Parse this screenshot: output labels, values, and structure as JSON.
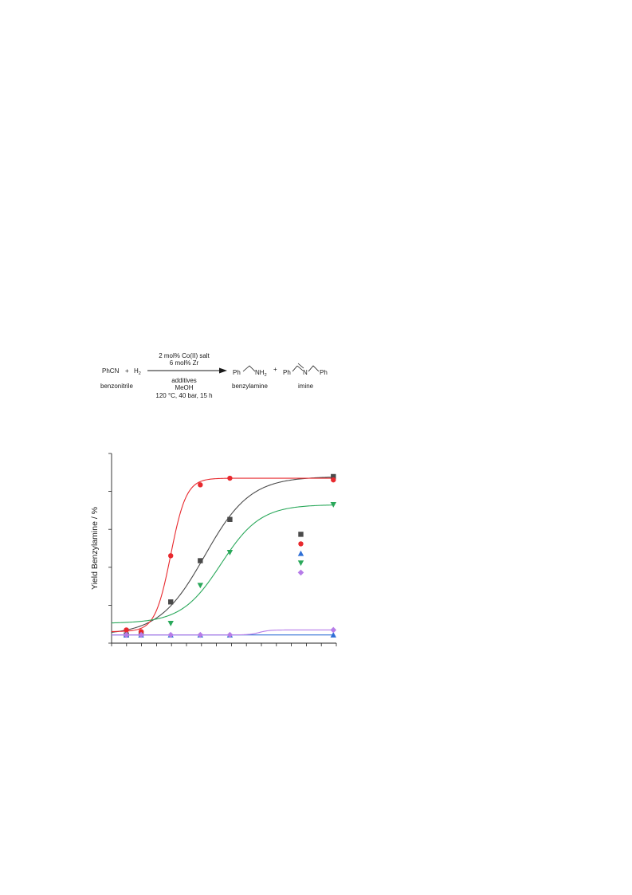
{
  "scheme": {
    "reactant": "PhCN",
    "plus1": "+",
    "h2": "H",
    "h2_sub": "2",
    "reactant_name": "benzonitrile",
    "above_arrow_1": "2 mol% Co(II) salt",
    "above_arrow_2": "6 mol% Zr",
    "below_arrow_1": "additives",
    "below_arrow_2": "MeOH",
    "below_arrow_3": "120 °C, 40 bar, 15 h",
    "product1_ph": "Ph",
    "product1_nh": "NH",
    "product1_sub": "2",
    "product1_name": "benzylamine",
    "plus2": "+",
    "product2_ph_left": "Ph",
    "product2_n": "N",
    "product2_ph_right": "Ph",
    "product2_name": "imine"
  },
  "chart_data": {
    "type": "scatter",
    "title": "",
    "xlabel": "",
    "ylabel": "Yield Benzylamine / %",
    "xlim": [
      0,
      15.2
    ],
    "ylim": [
      -5,
      110
    ],
    "x_tick_count": 16,
    "y_tick_count": 6,
    "tick_labels_shown": false,
    "legend_position": "right-middle",
    "series": [
      {
        "color": "#4a4a4a",
        "marker": "square",
        "points": [
          [
            1,
            0
          ],
          [
            2,
            1
          ],
          [
            4,
            20
          ],
          [
            6,
            45
          ],
          [
            8,
            70
          ],
          [
            15,
            96
          ]
        ],
        "fit_curve": true
      },
      {
        "color": "#e8292e",
        "marker": "circle",
        "points": [
          [
            1,
            3
          ],
          [
            2,
            2
          ],
          [
            4,
            48
          ],
          [
            6,
            91
          ],
          [
            8,
            95
          ],
          [
            15,
            94
          ]
        ],
        "fit_curve": true
      },
      {
        "color": "#2f6fd6",
        "marker": "triangle-up",
        "points": [
          [
            1,
            0
          ],
          [
            2,
            0
          ],
          [
            4,
            0
          ],
          [
            6,
            0
          ],
          [
            8,
            0
          ],
          [
            15,
            0
          ]
        ],
        "fit_curve": true
      },
      {
        "color": "#2aa85a",
        "marker": "triangle-down",
        "points": [
          [
            4,
            7
          ],
          [
            6,
            30
          ],
          [
            8,
            50
          ],
          [
            15,
            79
          ]
        ],
        "fit_curve": true
      },
      {
        "color": "#b67ce8",
        "marker": "diamond",
        "points": [
          [
            1,
            0
          ],
          [
            2,
            0
          ],
          [
            4,
            0
          ],
          [
            6,
            0
          ],
          [
            8,
            0
          ],
          [
            15,
            3
          ]
        ],
        "fit_curve": true
      }
    ]
  }
}
